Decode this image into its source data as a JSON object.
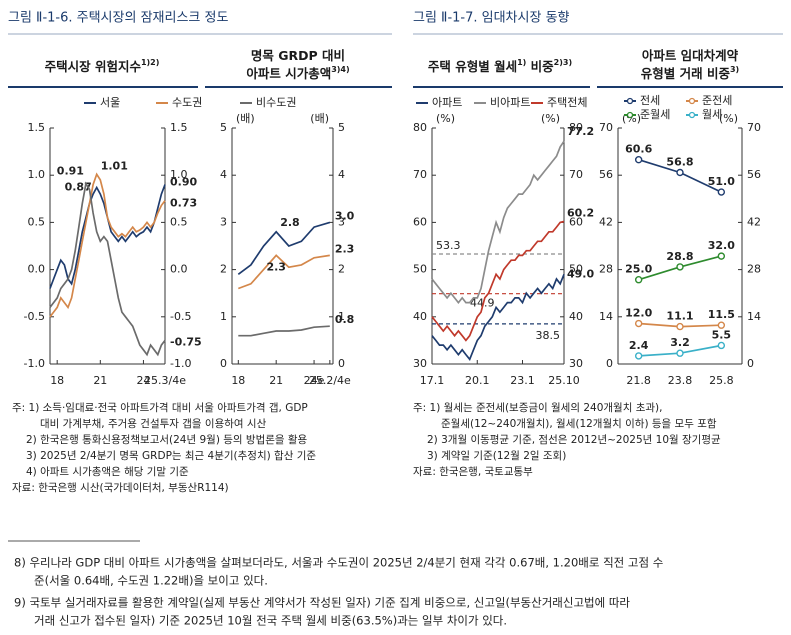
{
  "figures": [
    {
      "title": "그림 Ⅱ-1-6. 주택시장의 잠재리스크 정도",
      "notes": [
        "주: 1) 소득·임대료·전국 아파트가격 대비 서울 아파트가격 갭, GDP",
        "대비 가계부채, 주거용 건설투자 갭을 이용하여 시산",
        "2) 한국은행 통화신용정책보고서(24년 9월) 등의 방법론을 활용",
        "3) 2025년 2/4분기 명목 GRDP는 최근 4분기(추정치) 합산 기준",
        "4) 아파트 시가총액은 해당 기말 기준"
      ],
      "source": "자료: 한국은행 시산(국가데이터처, 부동산R114)"
    },
    {
      "title": "그림 Ⅱ-1-7. 임대차시장 동향",
      "notes": [
        "주: 1) 월세는 준전세(보증금이 월세의 240개월치 초과),",
        "준월세(12~240개월치), 월세(12개월치 이하) 등을 모두 포함",
        "2) 3개월 이동평균 기준, 점선은 2012년~2025년 10월 장기평균",
        "3) 계약일 기준(12월 2일 조회)"
      ],
      "source": "자료: 한국은행, 국토교통부"
    }
  ],
  "footnotes": [
    "8) 우리나라 GDP 대비 아파트 시가총액을 살펴보더라도, 서울과 수도권이 2025년 2/4분기 현재 각각 0.67배, 1.20배로 직전 고점 수",
    "준(서울 0.64배, 수도권 1.22배)을 보이고 있다.",
    "9) 국토부 실거래자료를 활용한 계약일(실제 부동산 계약서가 작성된 일자) 기준 집계 비중으로, 신고일(부동산거래신고법에 따라",
    "거래 신고가 접수된 일자) 기준 2025년 10월 전국 주택 월세 비중(63.5%)과는 일부 차이가 있다."
  ],
  "chart_data": [
    {
      "type": "line",
      "subtitle_lines": [
        [
          {
            "text": "주택시장 위험지수"
          },
          {
            "sup": "1)2)"
          }
        ]
      ],
      "x": [
        17.5,
        17.75,
        18,
        18.25,
        18.5,
        18.75,
        19,
        19.25,
        19.5,
        19.75,
        20,
        20.25,
        20.5,
        20.75,
        21,
        21.25,
        21.5,
        21.75,
        22,
        22.25,
        22.5,
        22.75,
        23,
        23.25,
        23.5,
        23.75,
        24,
        24.25,
        24.5,
        24.75,
        25,
        25.25,
        25.5
      ],
      "xlim": [
        17.5,
        25.5
      ],
      "xticks": [
        18,
        21,
        24,
        {
          "value": 25.5,
          "label": "25.3/4e"
        }
      ],
      "ylim": [
        -1,
        1.5
      ],
      "yticks": [
        {
          "value": -1,
          "label": "-1.0"
        },
        -0.5,
        {
          "value": 0,
          "label": "0.0"
        },
        0.5,
        {
          "value": 1,
          "label": "1.0"
        },
        1.5
      ],
      "right_axis": true,
      "series": [
        {
          "name": "서울",
          "color": "#1f3c6e",
          "values": [
            -0.2,
            -0.1,
            0,
            0.1,
            0.05,
            -0.1,
            -0.15,
            0,
            0.2,
            0.4,
            0.55,
            0.7,
            0.8,
            0.87,
            0.8,
            0.7,
            0.55,
            0.4,
            0.35,
            0.3,
            0.35,
            0.3,
            0.35,
            0.4,
            0.35,
            0.38,
            0.4,
            0.45,
            0.4,
            0.5,
            0.65,
            0.8,
            0.9
          ],
          "value_labels": [
            null,
            null,
            null,
            null,
            null,
            null,
            null,
            null,
            null,
            null,
            null,
            null,
            null,
            "0.87",
            null,
            null,
            null,
            null,
            null,
            null,
            null,
            null,
            null,
            null,
            null,
            null,
            null,
            null,
            null,
            null,
            null,
            null,
            "0.90"
          ]
        },
        {
          "name": "수도권",
          "color": "#d4874a",
          "values": [
            -0.5,
            -0.45,
            -0.4,
            -0.3,
            -0.35,
            -0.4,
            -0.3,
            -0.1,
            0.1,
            0.3,
            0.5,
            0.7,
            0.9,
            1.01,
            0.95,
            0.8,
            0.55,
            0.45,
            0.4,
            0.35,
            0.38,
            0.35,
            0.4,
            0.45,
            0.4,
            0.42,
            0.45,
            0.5,
            0.45,
            0.5,
            0.6,
            0.68,
            0.73
          ],
          "value_labels": [
            null,
            null,
            null,
            null,
            null,
            null,
            null,
            null,
            null,
            null,
            null,
            null,
            null,
            "1.01",
            null,
            null,
            null,
            null,
            null,
            null,
            null,
            null,
            null,
            null,
            null,
            null,
            null,
            null,
            null,
            null,
            null,
            null,
            "0.73"
          ]
        },
        {
          "name": "비수도권",
          "color": "#6b6b6b",
          "values": [
            -0.4,
            -0.35,
            -0.3,
            -0.2,
            -0.15,
            -0.1,
            0,
            0.2,
            0.45,
            0.7,
            0.91,
            0.85,
            0.6,
            0.4,
            0.3,
            0.35,
            0.3,
            0.1,
            -0.1,
            -0.3,
            -0.45,
            -0.5,
            -0.55,
            -0.6,
            -0.7,
            -0.8,
            -0.85,
            -0.9,
            -0.8,
            -0.85,
            -0.9,
            -0.8,
            -0.75
          ],
          "value_labels": [
            null,
            null,
            null,
            null,
            null,
            null,
            null,
            null,
            null,
            null,
            "0.91",
            null,
            null,
            null,
            null,
            null,
            null,
            null,
            null,
            null,
            null,
            null,
            null,
            null,
            null,
            null,
            null,
            null,
            null,
            null,
            null,
            null,
            "-0.75"
          ]
        }
      ]
    },
    {
      "type": "line",
      "subtitle_lines": [
        [
          {
            "text": "명목 GRDP 대비"
          }
        ],
        [
          {
            "text": "아파트 시가총액"
          },
          {
            "sup": "3)4)"
          }
        ]
      ],
      "y_unit": "(배)",
      "x": [
        18,
        19,
        20,
        21,
        22,
        23,
        24,
        25.25
      ],
      "xlim": [
        17.5,
        25.5
      ],
      "xticks": [
        18,
        21,
        {
          "value": 24,
          "label": "24e"
        },
        {
          "value": 25.25,
          "label": "25.2/4e"
        }
      ],
      "ylim": [
        0,
        5
      ],
      "yticks": [
        0,
        1,
        2,
        3,
        4,
        5
      ],
      "right_axis": true,
      "series": [
        {
          "color": "#1f3c6e",
          "values": [
            1.9,
            2.1,
            2.5,
            2.8,
            2.5,
            2.6,
            2.9,
            3.0
          ],
          "value_labels": [
            null,
            null,
            null,
            "2.8",
            null,
            null,
            null,
            "3.0"
          ]
        },
        {
          "color": "#d4874a",
          "values": [
            1.6,
            1.7,
            2.0,
            2.3,
            2.05,
            2.1,
            2.25,
            2.3
          ],
          "value_labels": [
            null,
            null,
            null,
            "2.3",
            null,
            null,
            null,
            "2.3"
          ]
        },
        {
          "color": "#6b6b6b",
          "values": [
            0.6,
            0.6,
            0.65,
            0.7,
            0.7,
            0.72,
            0.78,
            0.8
          ],
          "value_labels": [
            null,
            null,
            null,
            null,
            null,
            null,
            null,
            "0.8"
          ]
        }
      ]
    },
    {
      "type": "line",
      "subtitle_lines": [
        [
          {
            "text": "주택 유형별 월세"
          },
          {
            "sup": "1)"
          },
          {
            "text": " 비중"
          },
          {
            "sup": "2)3)"
          }
        ]
      ],
      "y_unit": "(%)",
      "x": [
        17,
        17.25,
        17.5,
        17.75,
        18,
        18.25,
        18.5,
        18.75,
        19,
        19.25,
        19.5,
        19.75,
        20,
        20.25,
        20.5,
        20.75,
        21,
        21.25,
        21.5,
        21.75,
        22,
        22.25,
        22.5,
        22.75,
        23,
        23.25,
        23.5,
        23.75,
        24,
        24.25,
        24.5,
        24.75,
        25,
        25.25,
        25.5,
        25.75
      ],
      "xlim": [
        17,
        25.75
      ],
      "xticks": [
        {
          "value": 17,
          "label": "17.1"
        },
        {
          "value": 20,
          "label": "20.1"
        },
        {
          "value": 23,
          "label": "23.1"
        },
        {
          "value": 25.75,
          "label": "25.10"
        }
      ],
      "ylim": [
        30,
        80
      ],
      "yticks": [
        30,
        40,
        50,
        60,
        70,
        80
      ],
      "right_axis": true,
      "reference_lines": [
        {
          "value": 53.3,
          "color": "#8c8c8c"
        },
        {
          "value": 44.9,
          "color": "#c0392b"
        },
        {
          "value": 38.5,
          "color": "#1f3c6e"
        }
      ],
      "series": [
        {
          "name": "아파트",
          "color": "#1f3c6e",
          "values": [
            36,
            35,
            34,
            34,
            33,
            34,
            33,
            32,
            33,
            32,
            31,
            33,
            35,
            36,
            38,
            39,
            40,
            42,
            41,
            42,
            43,
            43,
            44,
            44,
            43,
            45,
            44,
            45,
            46,
            45,
            46,
            47,
            46,
            48,
            47,
            49
          ],
          "value_labels": [
            null,
            null,
            null,
            null,
            null,
            null,
            null,
            null,
            null,
            null,
            null,
            null,
            null,
            null,
            null,
            null,
            null,
            null,
            null,
            null,
            null,
            null,
            null,
            null,
            null,
            null,
            null,
            null,
            null,
            null,
            null,
            null,
            null,
            null,
            null,
            "49.0"
          ]
        },
        {
          "name": "비아파트",
          "color": "#8c8c8c",
          "values": [
            48,
            47,
            46,
            45,
            44,
            45,
            44,
            43,
            44,
            43,
            43,
            44,
            44,
            46,
            50,
            54,
            57,
            60,
            58,
            61,
            63,
            64,
            65,
            66,
            66,
            67,
            68,
            70,
            69,
            70,
            71,
            72,
            73,
            74,
            76,
            77.2
          ],
          "value_labels": [
            null,
            null,
            null,
            null,
            null,
            null,
            null,
            null,
            null,
            null,
            null,
            null,
            null,
            null,
            null,
            null,
            null,
            null,
            null,
            null,
            null,
            null,
            null,
            null,
            null,
            null,
            null,
            null,
            null,
            null,
            null,
            null,
            null,
            null,
            null,
            "77.2"
          ]
        },
        {
          "name": "주택전체",
          "color": "#c0392b",
          "values": [
            40,
            39,
            38,
            37,
            38,
            37,
            36,
            37,
            36,
            35,
            36,
            38,
            40,
            41,
            44,
            45,
            47,
            49,
            48,
            50,
            51,
            52,
            52,
            53,
            53,
            54,
            54,
            55,
            56,
            56,
            57,
            58,
            58,
            59,
            60,
            60.2
          ],
          "value_labels": [
            null,
            null,
            null,
            null,
            null,
            null,
            null,
            null,
            null,
            null,
            null,
            null,
            null,
            null,
            null,
            null,
            null,
            null,
            null,
            null,
            null,
            null,
            null,
            null,
            null,
            null,
            null,
            null,
            null,
            null,
            null,
            null,
            null,
            null,
            null,
            "60.2"
          ]
        }
      ]
    },
    {
      "type": "line",
      "subtitle_lines": [
        [
          {
            "text": "아파트 임대차계약"
          }
        ],
        [
          {
            "text": "유형별 거래 비중"
          },
          {
            "sup": "3)"
          }
        ]
      ],
      "y_unit": "(%)",
      "markers": true,
      "categories": [
        "21.8",
        "23.8",
        "25.8"
      ],
      "ylim": [
        0,
        70
      ],
      "yticks": [
        0,
        14,
        28,
        42,
        56,
        70
      ],
      "right_axis": true,
      "series": [
        {
          "name": "전세",
          "color": "#1f3c6e",
          "values": [
            60.6,
            56.8,
            51.0
          ],
          "value_labels": [
            "60.6",
            "56.8",
            "51.0"
          ]
        },
        {
          "name": "준전세",
          "color": "#d4874a",
          "values": [
            12.0,
            11.1,
            11.5
          ],
          "value_labels": [
            "12.0",
            "11.1",
            "11.5"
          ]
        },
        {
          "name": "준월세",
          "color": "#2e8b2e",
          "values": [
            25.0,
            28.8,
            32.0
          ],
          "value_labels": [
            "25.0",
            "28.8",
            "32.0"
          ]
        },
        {
          "name": "월세",
          "color": "#3ab0c8",
          "values": [
            2.4,
            3.2,
            5.5
          ],
          "value_labels": [
            "2.4",
            "3.2",
            "5.5"
          ]
        }
      ]
    }
  ]
}
